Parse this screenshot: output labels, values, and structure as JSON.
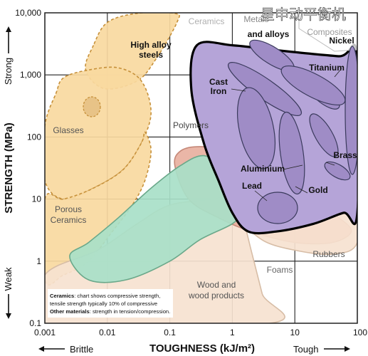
{
  "watermark": "星申动平衡机",
  "chart_data": {
    "type": "area",
    "title": "",
    "xlabel": "TOUGHNESS (kJ/m²)",
    "ylabel": "STRENGTH (MPa)",
    "x_scale": "log",
    "y_scale": "log",
    "xlim": [
      0.001,
      100
    ],
    "ylim": [
      0.1,
      10000
    ],
    "grid": true,
    "x_ticks": [
      "0.001",
      "0.01",
      "0.1",
      "1",
      "10",
      "100"
    ],
    "y_ticks": [
      "0.1",
      "1",
      "10",
      "100",
      "1,000",
      "10,000"
    ],
    "x_end_labels": {
      "low": "Brittle",
      "high": "Tough"
    },
    "y_end_labels": {
      "low": "Weak",
      "high": "Strong"
    },
    "regions": [
      {
        "name": "Ceramics",
        "label": "Ceramics",
        "color": "#f9d9a0",
        "outline": "dashed",
        "points": [
          [
            0.006,
            3000
          ],
          [
            0.0045,
            1200
          ],
          [
            0.009,
            600
          ],
          [
            0.03,
            800
          ],
          [
            0.06,
            1800
          ],
          [
            0.13,
            7000
          ],
          [
            0.12,
            9800
          ],
          [
            0.03,
            9800
          ],
          [
            0.01,
            7000
          ]
        ]
      },
      {
        "name": "Glasses",
        "label": "Glasses",
        "color": "#f9d9a0",
        "outline": "dashed",
        "points": [
          [
            0.0015,
            500
          ],
          [
            0.002,
            900
          ],
          [
            0.005,
            1200
          ],
          [
            0.015,
            1300
          ],
          [
            0.035,
            800
          ],
          [
            0.05,
            250
          ],
          [
            0.035,
            80
          ],
          [
            0.018,
            30
          ],
          [
            0.006,
            15
          ],
          [
            0.002,
            10
          ],
          [
            0.001,
            20
          ],
          [
            0.001,
            150
          ]
        ]
      },
      {
        "name": "Porous Ceramics",
        "label": "Porous Ceramics",
        "color": "#f9d9a0",
        "outline": "dashed",
        "points": [
          [
            0.001,
            10
          ],
          [
            0.002,
            10
          ],
          [
            0.006,
            15
          ],
          [
            0.018,
            30
          ],
          [
            0.035,
            80
          ],
          [
            0.04,
            120
          ],
          [
            0.05,
            60
          ],
          [
            0.04,
            20
          ],
          [
            0.025,
            8
          ],
          [
            0.012,
            3
          ],
          [
            0.005,
            1
          ],
          [
            0.002,
            0.6
          ],
          [
            0.001,
            0.5
          ]
        ]
      },
      {
        "name": "Foams",
        "label": "Foams",
        "color": "#f6e2d0",
        "outline": "solid",
        "points": [
          [
            0.001,
            0.6
          ],
          [
            0.007,
            1.5
          ],
          [
            0.03,
            4
          ],
          [
            0.1,
            8
          ],
          [
            0.5,
            10
          ],
          [
            1,
            12
          ],
          [
            1.4,
            6
          ],
          [
            2,
            1.5
          ],
          [
            3,
            0.3
          ],
          [
            4,
            0.1
          ],
          [
            0.001,
            0.1
          ]
        ]
      },
      {
        "name": "Polymers",
        "label": "Polymers",
        "color": "#e8b0a0",
        "outline": "solid",
        "points": [
          [
            0.12,
            35
          ],
          [
            0.15,
            60
          ],
          [
            0.3,
            70
          ],
          [
            1,
            60
          ],
          [
            3,
            30
          ],
          [
            8,
            14
          ],
          [
            20,
            8
          ],
          [
            50,
            5
          ],
          [
            80,
            3
          ],
          [
            40,
            2
          ],
          [
            10,
            2
          ],
          [
            2,
            3
          ],
          [
            0.6,
            5
          ],
          [
            0.2,
            10
          ]
        ]
      },
      {
        "name": "Rubbers",
        "label": "Rubbers",
        "color": "#f6e2d0",
        "outline": "solid",
        "points": [
          [
            1.5,
            5
          ],
          [
            5,
            8
          ],
          [
            30,
            12
          ],
          [
            100,
            14
          ],
          [
            100,
            2
          ],
          [
            40,
            1.3
          ],
          [
            10,
            1.5
          ],
          [
            3,
            2.2
          ]
        ]
      },
      {
        "name": "Wood and wood products",
        "label": "Wood and wood products",
        "color": "#a8e0c8",
        "outline": "solid",
        "points": [
          [
            0.0025,
            1.2
          ],
          [
            0.005,
            0.5
          ],
          [
            0.02,
            0.5
          ],
          [
            0.1,
            1
          ],
          [
            0.3,
            2.2
          ],
          [
            1,
            4
          ],
          [
            1.3,
            6
          ],
          [
            1.2,
            12
          ],
          [
            0.7,
            30
          ],
          [
            0.35,
            50
          ],
          [
            0.15,
            35
          ],
          [
            0.05,
            15
          ],
          [
            0.015,
            5
          ],
          [
            0.005,
            2
          ]
        ]
      },
      {
        "name": "Metals",
        "label": "Metals",
        "color": "#b5a4d8",
        "outline": "solid",
        "points": [
          [
            0.27,
            3000
          ],
          [
            1,
            3000
          ],
          [
            5,
            2500
          ],
          [
            50,
            2000
          ],
          [
            100,
            2000
          ],
          [
            100,
            6
          ],
          [
            60,
            6
          ],
          [
            20,
            4
          ],
          [
            5,
            3
          ],
          [
            1.8,
            3
          ],
          [
            1,
            6
          ],
          [
            0.6,
            20
          ],
          [
            0.35,
            80
          ],
          [
            0.22,
            600
          ]
        ]
      }
    ],
    "sub_regions": [
      {
        "name": "Nickel",
        "label": "Nickel"
      },
      {
        "name": "Titanium",
        "label": "Titanium"
      },
      {
        "name": "Cast Iron",
        "label": "Cast Iron"
      },
      {
        "name": "Brass",
        "label": "Brass"
      },
      {
        "name": "Aluminium",
        "label": "Aluminium"
      },
      {
        "name": "Lead",
        "label": "Lead"
      },
      {
        "name": "Gold",
        "label": "Gold"
      }
    ],
    "region_labels": [
      {
        "name": "Ceramics",
        "text": "Ceramics"
      },
      {
        "name": "Composites",
        "text": "Composites"
      },
      {
        "name": "Metals",
        "text": "Metals"
      },
      {
        "name": "and alloys",
        "text": "and alloys"
      },
      {
        "name": "High alloy steels",
        "text": "High alloy steels"
      },
      {
        "name": "Polymers",
        "text": "Polymers"
      },
      {
        "name": "Glasses",
        "text": "Glasses"
      },
      {
        "name": "Porous Ceramics",
        "text": "Porous Ceramics"
      },
      {
        "name": "Wood and wood products",
        "text": "Wood and wood products"
      },
      {
        "name": "Foams",
        "text": "Foams"
      },
      {
        "name": "Rubbers",
        "text": "Rubbers"
      }
    ],
    "annotation": [
      {
        "bold": "Ceramics",
        "text": ": chart shows compressive strength,"
      },
      {
        "bold": "",
        "text": "tensile strength typically 10% of compressive"
      },
      {
        "bold": "Other materials",
        "text": ": strength in tension/compression."
      }
    ]
  }
}
